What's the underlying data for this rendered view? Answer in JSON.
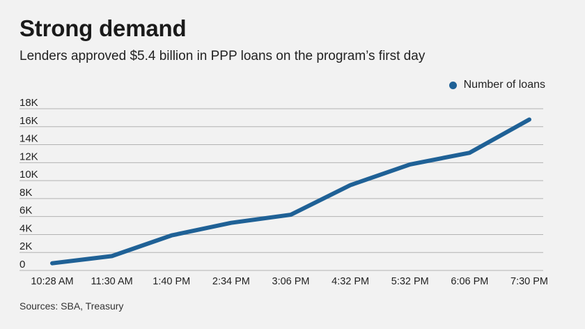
{
  "title": "Strong demand",
  "subtitle": "Lenders approved $5.4 billion in PPP loans on the program’s first day",
  "source": "Sources: SBA, Treasury",
  "colors": {
    "series": "#1f6196",
    "grid": "#b3b3b3",
    "text": "#222222"
  },
  "chart_data": {
    "type": "line",
    "title": "Strong demand",
    "subtitle": "Lenders approved $5.4 billion in PPP loans on the program’s first day",
    "categories": [
      "10:28 AM",
      "11:30 AM",
      "1:40 PM",
      "2:34 PM",
      "3:06 PM",
      "4:32 PM",
      "5:32 PM",
      "6:06 PM",
      "7:30 PM"
    ],
    "series": [
      {
        "name": "Number of loans",
        "values": [
          800,
          1600,
          3900,
          5300,
          6200,
          9500,
          11800,
          13100,
          16800
        ]
      }
    ],
    "yticks": [
      "0",
      "2K",
      "4K",
      "6K",
      "8K",
      "10K",
      "12K",
      "14K",
      "16K",
      "18K"
    ],
    "ylim": [
      0,
      18000
    ],
    "grid": true,
    "legend": "top-right"
  }
}
